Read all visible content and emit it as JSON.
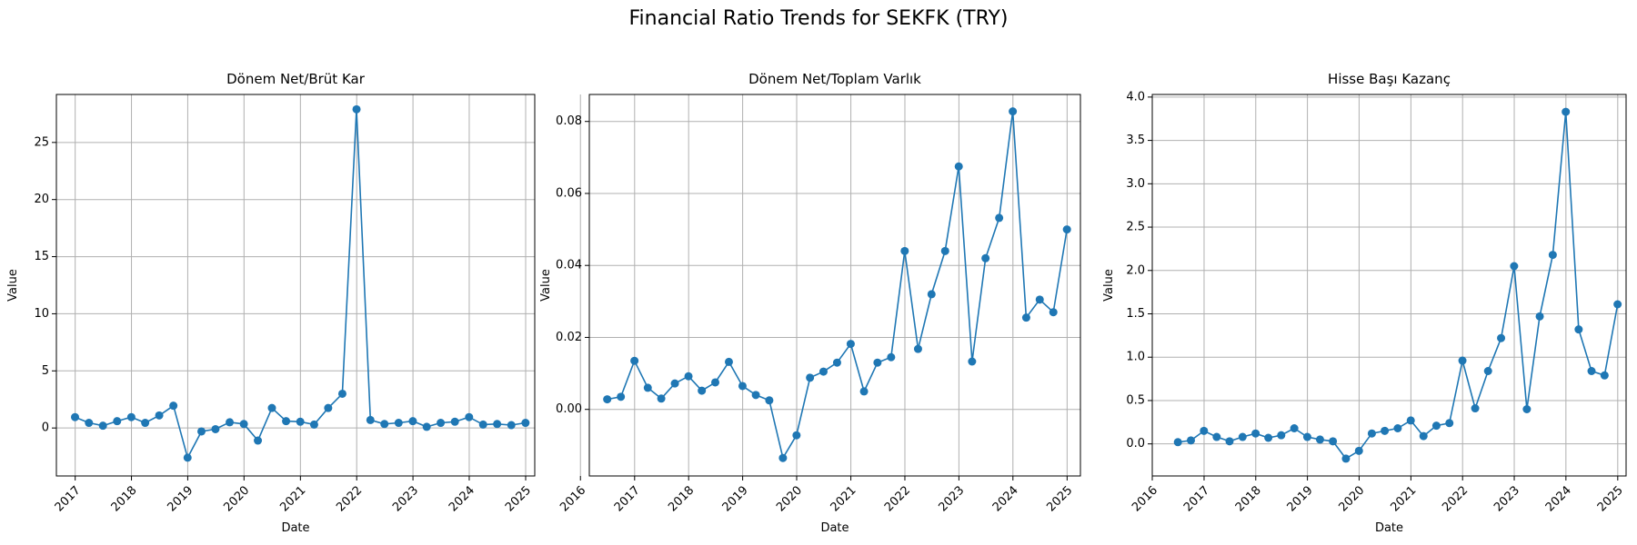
{
  "figure": {
    "title": "Financial Ratio Trends for SEKFK (TRY)"
  },
  "style": {
    "line_color": "#1f77b4",
    "grid_color": "#b0b0b0"
  },
  "chart_data": [
    {
      "type": "line",
      "title": "Dönem Net/Brüt Kar",
      "xlabel": "Date",
      "ylabel": "Value",
      "grid": true,
      "xlim": [
        "2016-09-01",
        "2025-03-01"
      ],
      "ylim": [
        -4.2,
        29.2
      ],
      "x_ticks": [
        "2017",
        "2018",
        "2019",
        "2020",
        "2021",
        "2022",
        "2023",
        "2024",
        "2025"
      ],
      "y_ticks": [
        "0",
        "5",
        "10",
        "15",
        "20",
        "25"
      ],
      "x": [
        "2016-12-31",
        "2017-03-31",
        "2017-06-30",
        "2017-09-30",
        "2017-12-31",
        "2018-03-31",
        "2018-06-30",
        "2018-09-30",
        "2018-12-31",
        "2019-03-31",
        "2019-06-30",
        "2019-09-30",
        "2019-12-31",
        "2020-03-31",
        "2020-06-30",
        "2020-09-30",
        "2020-12-31",
        "2021-03-31",
        "2021-06-30",
        "2021-09-30",
        "2021-12-31",
        "2022-03-31",
        "2022-06-30",
        "2022-09-30",
        "2022-12-31",
        "2023-03-31",
        "2023-06-30",
        "2023-09-30",
        "2023-12-31",
        "2024-03-31",
        "2024-06-30",
        "2024-09-30",
        "2024-12-31"
      ],
      "values": [
        0.95,
        0.45,
        0.2,
        0.6,
        0.95,
        0.45,
        1.1,
        1.95,
        -2.6,
        -0.3,
        -0.1,
        0.5,
        0.35,
        -1.1,
        1.75,
        0.6,
        0.55,
        0.3,
        1.75,
        3.0,
        27.9,
        0.7,
        0.35,
        0.45,
        0.6,
        0.1,
        0.45,
        0.55,
        0.95,
        0.3,
        0.35,
        0.25,
        0.45
      ]
    },
    {
      "type": "line",
      "title": "Dönem Net/Toplam Varlık",
      "xlabel": "Date",
      "ylabel": "Value",
      "grid": true,
      "xlim": [
        "2016-03-01",
        "2025-04-01"
      ],
      "ylim": [
        -0.0185,
        0.0875
      ],
      "x_ticks": [
        "2016",
        "2017",
        "2018",
        "2019",
        "2020",
        "2021",
        "2022",
        "2023",
        "2024",
        "2025"
      ],
      "y_ticks": [
        "0.00",
        "0.02",
        "0.04",
        "0.06",
        "0.08"
      ],
      "x": [
        "2016-06-30",
        "2016-09-30",
        "2016-12-31",
        "2017-03-31",
        "2017-06-30",
        "2017-09-30",
        "2017-12-31",
        "2018-03-31",
        "2018-06-30",
        "2018-09-30",
        "2018-12-31",
        "2019-03-31",
        "2019-06-30",
        "2019-09-30",
        "2019-12-31",
        "2020-03-31",
        "2020-06-30",
        "2020-09-30",
        "2020-12-31",
        "2021-03-31",
        "2021-06-30",
        "2021-09-30",
        "2021-12-31",
        "2022-03-31",
        "2022-06-30",
        "2022-09-30",
        "2022-12-31",
        "2023-03-31",
        "2023-06-30",
        "2023-09-30",
        "2023-12-31",
        "2024-03-31",
        "2024-06-30",
        "2024-09-30",
        "2024-12-31"
      ],
      "values": [
        0.0028,
        0.0035,
        0.0135,
        0.006,
        0.003,
        0.0072,
        0.0092,
        0.0052,
        0.0075,
        0.0132,
        0.0065,
        0.004,
        0.0025,
        -0.0135,
        -0.0072,
        0.0088,
        0.0105,
        0.013,
        0.0182,
        0.005,
        0.013,
        0.0145,
        0.044,
        0.0168,
        0.032,
        0.044,
        0.0675,
        0.0133,
        0.042,
        0.0532,
        0.0828,
        0.0255,
        0.0305,
        0.027,
        0.05
      ]
    },
    {
      "type": "line",
      "title": "Hisse Başı Kazanç",
      "xlabel": "Date",
      "ylabel": "Value",
      "grid": true,
      "xlim": [
        "2016-01-01",
        "2025-03-01"
      ],
      "ylim": [
        -0.37,
        4.03
      ],
      "x_ticks": [
        "2016",
        "2017",
        "2018",
        "2019",
        "2020",
        "2021",
        "2022",
        "2023",
        "2024",
        "2025"
      ],
      "y_ticks": [
        "0.0",
        "0.5",
        "1.0",
        "1.5",
        "2.0",
        "2.5",
        "3.0",
        "3.5",
        "4.0"
      ],
      "x": [
        "2016-06-30",
        "2016-09-30",
        "2016-12-31",
        "2017-03-31",
        "2017-06-30",
        "2017-09-30",
        "2017-12-31",
        "2018-03-31",
        "2018-06-30",
        "2018-09-30",
        "2018-12-31",
        "2019-03-31",
        "2019-06-30",
        "2019-09-30",
        "2019-12-31",
        "2020-03-31",
        "2020-06-30",
        "2020-09-30",
        "2020-12-31",
        "2021-03-31",
        "2021-06-30",
        "2021-09-30",
        "2021-12-31",
        "2022-03-31",
        "2022-06-30",
        "2022-09-30",
        "2022-12-31",
        "2023-03-31",
        "2023-06-30",
        "2023-09-30",
        "2023-12-31",
        "2024-03-31",
        "2024-06-30",
        "2024-09-30",
        "2024-12-31"
      ],
      "values": [
        0.02,
        0.04,
        0.15,
        0.08,
        0.03,
        0.08,
        0.12,
        0.07,
        0.1,
        0.18,
        0.08,
        0.05,
        0.03,
        -0.17,
        -0.08,
        0.12,
        0.15,
        0.18,
        0.27,
        0.09,
        0.21,
        0.24,
        0.96,
        0.41,
        0.84,
        1.22,
        2.05,
        0.4,
        1.47,
        2.18,
        3.83,
        1.32,
        0.84,
        0.79,
        1.61
      ]
    }
  ]
}
